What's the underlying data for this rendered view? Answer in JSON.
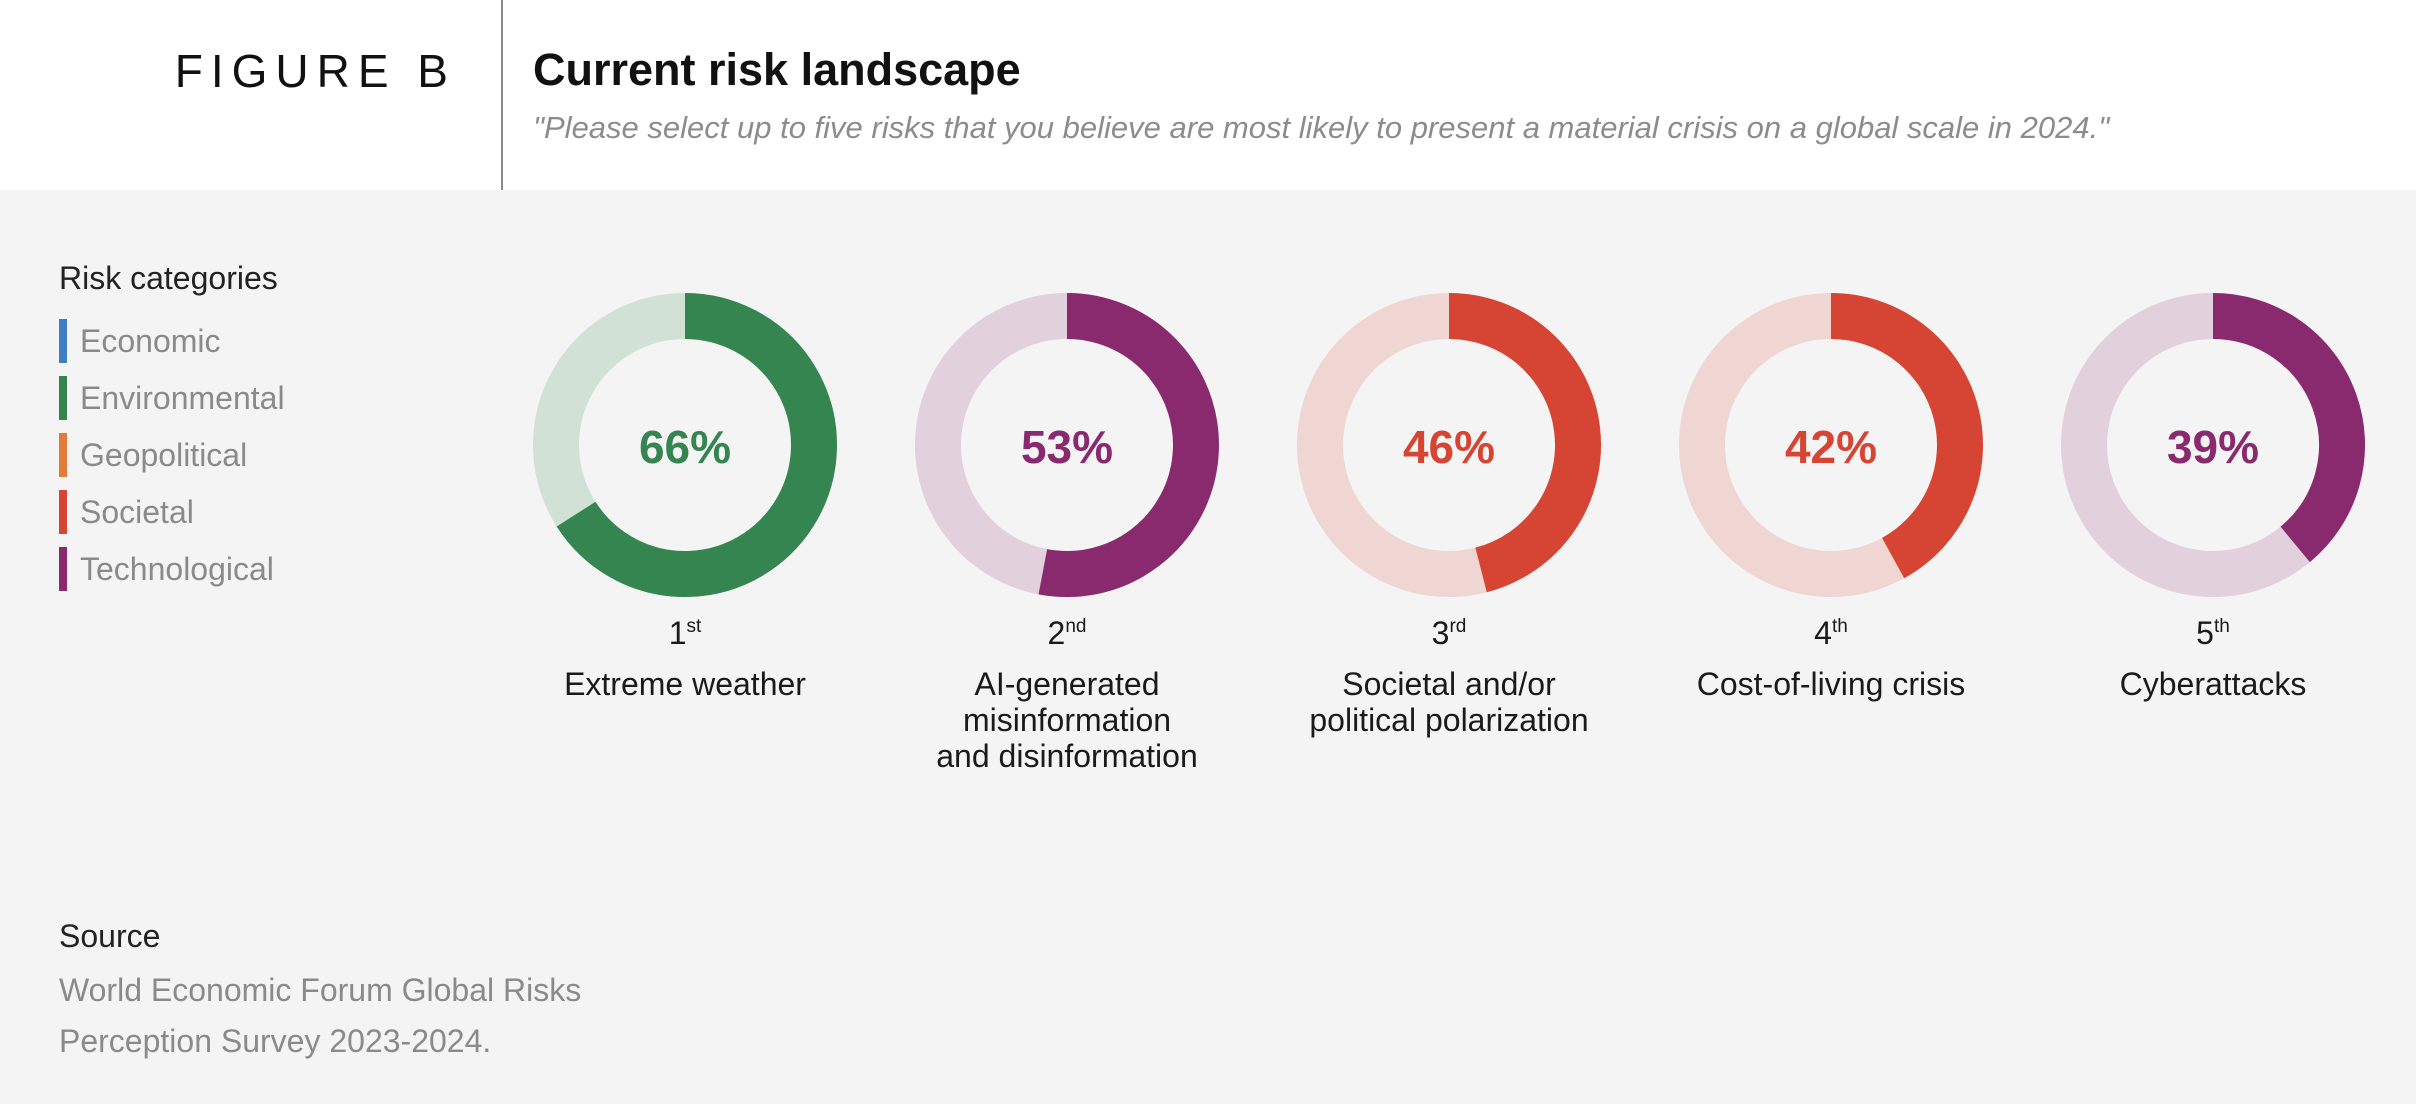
{
  "header": {
    "figure_label": "FIGURE B",
    "title": "Current risk landscape",
    "subtitle": "\"Please select up to five risks that you believe are most likely to present a material crisis on a global scale in 2024.\""
  },
  "legend": {
    "title": "Risk categories",
    "items": [
      {
        "label": "Economic",
        "color": "#3d7fc1"
      },
      {
        "label": "Environmental",
        "color": "#358551"
      },
      {
        "label": "Geopolitical",
        "color": "#e07b39"
      },
      {
        "label": "Societal",
        "color": "#d64434"
      },
      {
        "label": "Technological",
        "color": "#8a2a6e"
      }
    ]
  },
  "chart_data": {
    "type": "donut",
    "categories": [
      "Extreme weather",
      "AI-generated\nmisinformation\nand disinformation",
      "Societal and/or\npolitical polarization",
      "Cost-of-living crisis",
      "Cyberattacks"
    ],
    "values": [
      66,
      53,
      46,
      42,
      39
    ],
    "labels": [
      "66%",
      "53%",
      "46%",
      "42%",
      "39%"
    ],
    "ranks": [
      {
        "num": "1",
        "suffix": "st"
      },
      {
        "num": "2",
        "suffix": "nd"
      },
      {
        "num": "3",
        "suffix": "rd"
      },
      {
        "num": "4",
        "suffix": "th"
      },
      {
        "num": "5",
        "suffix": "th"
      }
    ],
    "risk_category": [
      "Environmental",
      "Technological",
      "Societal",
      "Societal",
      "Technological"
    ],
    "colors": [
      "#358551",
      "#8a2a6e",
      "#d64434",
      "#d64434",
      "#8a2a6e"
    ],
    "track_colors": [
      "#d1e1d6",
      "#e2d0dc",
      "#f0d6d2",
      "#f0d6d2",
      "#e2d0dc"
    ],
    "ylim": [
      0,
      100
    ]
  },
  "source": {
    "title": "Source",
    "text": "World Economic Forum Global Risks Perception Survey 2023-2024."
  }
}
